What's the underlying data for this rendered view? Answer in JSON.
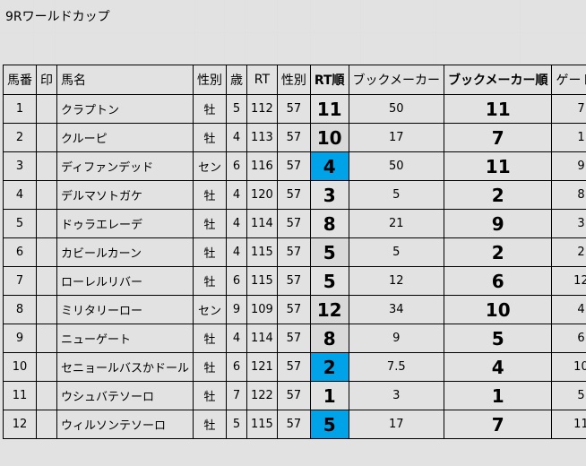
{
  "sheet_title": "9Rワールドカップ",
  "headers": [
    "馬番",
    "印",
    "馬名",
    "性別",
    "歳",
    "RT",
    "性別",
    "RT順",
    "ブックメーカー",
    "ブックメーカー順",
    "ゲート番"
  ],
  "colors": {
    "blue_highlight": "#00a2e8",
    "gray_highlight": "#d9d9d9"
  },
  "rows": [
    {
      "num": "1",
      "mark": "",
      "name": "クラプトン",
      "sex": "牡",
      "age": "5",
      "rt": "112",
      "weight": "57",
      "rt_rank": "11",
      "bookmaker": "50",
      "bookmaker_rank": "11",
      "gate": "7",
      "highlight": ""
    },
    {
      "num": "2",
      "mark": "",
      "name": "クルーピ",
      "sex": "牡",
      "age": "4",
      "rt": "113",
      "weight": "57",
      "rt_rank": "10",
      "bookmaker": "17",
      "bookmaker_rank": "7",
      "gate": "1",
      "highlight": "gray"
    },
    {
      "num": "3",
      "mark": "",
      "name": "ディファンデッド",
      "sex": "セン",
      "age": "6",
      "rt": "116",
      "weight": "57",
      "rt_rank": "4",
      "bookmaker": "50",
      "bookmaker_rank": "11",
      "gate": "9",
      "highlight": "blue"
    },
    {
      "num": "4",
      "mark": "",
      "name": "デルマソトガケ",
      "sex": "牡",
      "age": "4",
      "rt": "120",
      "weight": "57",
      "rt_rank": "3",
      "bookmaker": "5",
      "bookmaker_rank": "2",
      "gate": "8",
      "highlight": ""
    },
    {
      "num": "5",
      "mark": "",
      "name": "ドゥラエレーデ",
      "sex": "牡",
      "age": "4",
      "rt": "114",
      "weight": "57",
      "rt_rank": "8",
      "bookmaker": "21",
      "bookmaker_rank": "9",
      "gate": "3",
      "highlight": ""
    },
    {
      "num": "6",
      "mark": "",
      "name": "カビールカーン",
      "sex": "牡",
      "age": "4",
      "rt": "115",
      "weight": "57",
      "rt_rank": "5",
      "bookmaker": "5",
      "bookmaker_rank": "2",
      "gate": "2",
      "highlight": "gray"
    },
    {
      "num": "7",
      "mark": "",
      "name": "ローレルリバー",
      "sex": "牡",
      "age": "6",
      "rt": "115",
      "weight": "57",
      "rt_rank": "5",
      "bookmaker": "12",
      "bookmaker_rank": "6",
      "gate": "12",
      "highlight": ""
    },
    {
      "num": "8",
      "mark": "",
      "name": "ミリタリーロー",
      "sex": "セン",
      "age": "9",
      "rt": "109",
      "weight": "57",
      "rt_rank": "12",
      "bookmaker": "34",
      "bookmaker_rank": "10",
      "gate": "4",
      "highlight": "gray"
    },
    {
      "num": "9",
      "mark": "",
      "name": "ニューゲート",
      "sex": "牡",
      "age": "4",
      "rt": "114",
      "weight": "57",
      "rt_rank": "8",
      "bookmaker": "9",
      "bookmaker_rank": "5",
      "gate": "6",
      "highlight": "gray"
    },
    {
      "num": "10",
      "mark": "",
      "name": "セニョールバスかドール",
      "sex": "牡",
      "age": "6",
      "rt": "121",
      "weight": "57",
      "rt_rank": "2",
      "bookmaker": "7.5",
      "bookmaker_rank": "4",
      "gate": "10",
      "highlight": "blue"
    },
    {
      "num": "11",
      "mark": "",
      "name": "ウシュバテソーロ",
      "sex": "牡",
      "age": "7",
      "rt": "122",
      "weight": "57",
      "rt_rank": "1",
      "bookmaker": "3",
      "bookmaker_rank": "1",
      "gate": "5",
      "highlight": ""
    },
    {
      "num": "12",
      "mark": "",
      "name": "ウィルソンテソーロ",
      "sex": "牡",
      "age": "5",
      "rt": "115",
      "weight": "57",
      "rt_rank": "5",
      "bookmaker": "17",
      "bookmaker_rank": "7",
      "gate": "11",
      "highlight": "blue"
    }
  ]
}
